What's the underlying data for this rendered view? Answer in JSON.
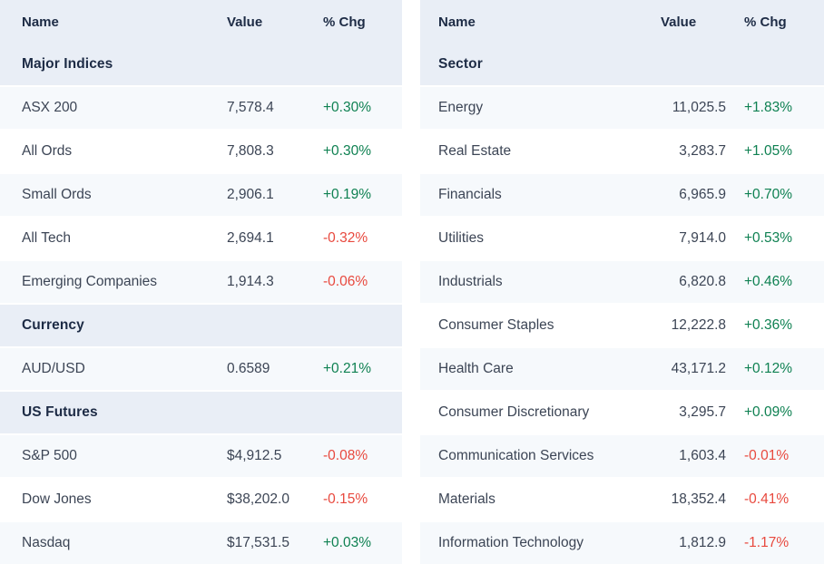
{
  "colors": {
    "header_bg": "#e9eef6",
    "stripe_bg": "#f6f9fc",
    "heading_text": "#1d2b45",
    "row_text": "#3c4555",
    "positive": "#0f8152",
    "negative": "#e8493e"
  },
  "tables": [
    {
      "name": "indices",
      "columns": {
        "name": "Name",
        "value": "Value",
        "chg": "% Chg"
      },
      "sections": [
        {
          "title": "Major Indices",
          "rows": [
            {
              "name": "ASX 200",
              "value": "7,578.4",
              "chg": "+0.30%"
            },
            {
              "name": "All Ords",
              "value": "7,808.3",
              "chg": "+0.30%"
            },
            {
              "name": "Small Ords",
              "value": "2,906.1",
              "chg": "+0.19%"
            },
            {
              "name": "All Tech",
              "value": "2,694.1",
              "chg": "-0.32%"
            },
            {
              "name": "Emerging Companies",
              "value": "1,914.3",
              "chg": "-0.06%"
            }
          ]
        },
        {
          "title": "Currency",
          "rows": [
            {
              "name": "AUD/USD",
              "value": "0.6589",
              "chg": "+0.21%"
            }
          ]
        },
        {
          "title": "US Futures",
          "rows": [
            {
              "name": "S&P 500",
              "value": "$4,912.5",
              "chg": "-0.08%"
            },
            {
              "name": "Dow Jones",
              "value": "$38,202.0",
              "chg": "-0.15%"
            },
            {
              "name": "Nasdaq",
              "value": "$17,531.5",
              "chg": "+0.03%"
            }
          ]
        }
      ]
    },
    {
      "name": "sectors",
      "columns": {
        "name": "Name",
        "value": "Value",
        "chg": "% Chg"
      },
      "sections": [
        {
          "title": "Sector",
          "rows": [
            {
              "name": "Energy",
              "value": "11,025.5",
              "chg": "+1.83%"
            },
            {
              "name": "Real Estate",
              "value": "3,283.7",
              "chg": "+1.05%"
            },
            {
              "name": "Financials",
              "value": "6,965.9",
              "chg": "+0.70%"
            },
            {
              "name": "Utilities",
              "value": "7,914.0",
              "chg": "+0.53%"
            },
            {
              "name": "Industrials",
              "value": "6,820.8",
              "chg": "+0.46%"
            },
            {
              "name": "Consumer Staples",
              "value": "12,222.8",
              "chg": "+0.36%"
            },
            {
              "name": "Health Care",
              "value": "43,171.2",
              "chg": "+0.12%"
            },
            {
              "name": "Consumer Discretionary",
              "value": "3,295.7",
              "chg": "+0.09%"
            },
            {
              "name": "Communication Services",
              "value": "1,603.4",
              "chg": "-0.01%"
            },
            {
              "name": "Materials",
              "value": "18,352.4",
              "chg": "-0.41%"
            },
            {
              "name": "Information Technology",
              "value": "1,812.9",
              "chg": "-1.17%"
            }
          ]
        }
      ]
    }
  ]
}
